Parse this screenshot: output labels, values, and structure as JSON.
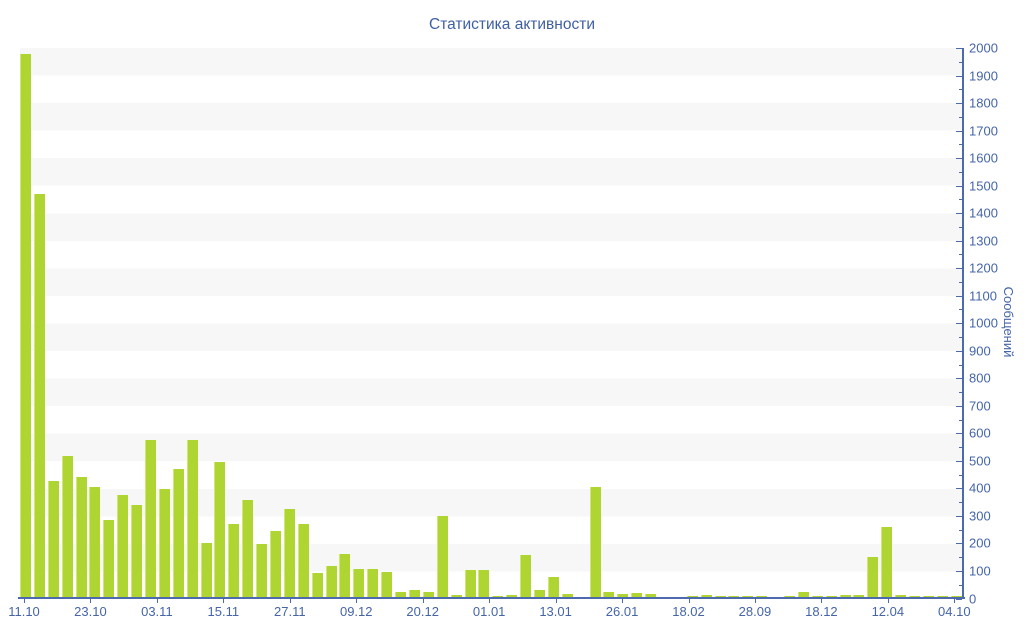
{
  "title": "Статистика активности",
  "chart_data": {
    "type": "bar",
    "title": "Статистика активности",
    "xlabel": "",
    "ylabel": "Сообщений",
    "ylim": [
      0,
      2000
    ],
    "y_tick_step": 100,
    "y_minor_tick_step": 50,
    "y_axis_position": "right",
    "grid": "horizontal-alternating-bands",
    "legend": "none",
    "bar_color": "#aed531",
    "band_color": "#f7f7f8",
    "axis_color": "#4c6aad",
    "label_color": "#4565a8",
    "x_tick_labels": [
      "11.10",
      "23.10",
      "03.11",
      "15.11",
      "27.11",
      "09.12",
      "20.12",
      "01.01",
      "13.01",
      "26.01",
      "18.02",
      "28.09",
      "18.12",
      "12.04",
      "04.10"
    ],
    "y_tick_labels": [
      "0",
      "100",
      "200",
      "300",
      "400",
      "500",
      "600",
      "700",
      "800",
      "900",
      "1000",
      "1100",
      "1200",
      "1300",
      "1400",
      "1500",
      "1600",
      "1700",
      "1800",
      "1900",
      "2000"
    ],
    "values": [
      1980,
      1470,
      425,
      515,
      440,
      405,
      285,
      375,
      340,
      575,
      395,
      470,
      575,
      200,
      495,
      270,
      355,
      195,
      245,
      325,
      270,
      90,
      118,
      160,
      107,
      105,
      93,
      23,
      28,
      23,
      300,
      12,
      101,
      101,
      7,
      11,
      158,
      28,
      75,
      16,
      4,
      405,
      22,
      16,
      18,
      13,
      4,
      4,
      8,
      12,
      6,
      6,
      8,
      6,
      5,
      8,
      23,
      8,
      6,
      10,
      10,
      150,
      260,
      10,
      8,
      8,
      8,
      8
    ]
  }
}
